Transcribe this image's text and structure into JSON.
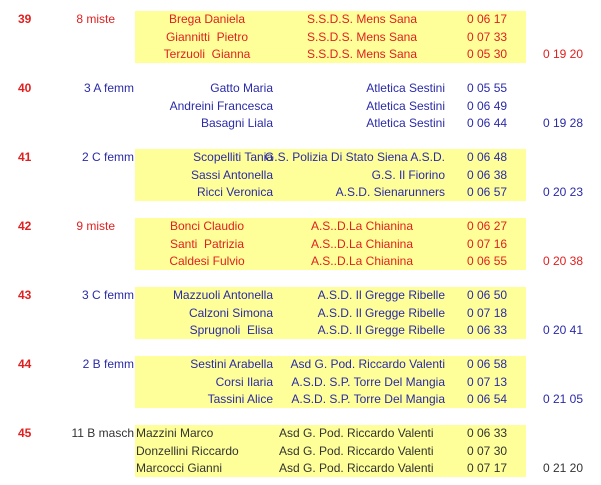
{
  "colors": {
    "highlight": "#ffff99",
    "red": "#e02020",
    "blue": "#2a2aa8",
    "black": "#333333"
  },
  "teams": [
    {
      "rank": "39",
      "category": "8 miste",
      "style": "red",
      "highlight": true,
      "total": "0 19 20",
      "members": [
        {
          "name": "Brega Daniela",
          "club": "S.S.D.S. Mens Sana",
          "time": "0 06 17"
        },
        {
          "name": "Giannitti  Pietro",
          "club": "S.S.D.S. Mens Sana",
          "time": "0 07 33"
        },
        {
          "name": "Terzuoli  Gianna",
          "club": "S.S.D.S. Mens Sana",
          "time": "0 05 30"
        }
      ]
    },
    {
      "rank": "40",
      "category": "3 A femm",
      "style": "blue",
      "highlight": false,
      "total": "0 19 28",
      "members": [
        {
          "name": "Gatto Maria",
          "club": "Atletica Sestini",
          "time": "0 05 55"
        },
        {
          "name": "Andreini Francesca",
          "club": "Atletica Sestini",
          "time": "0 06 49"
        },
        {
          "name": "Basagni Liala",
          "club": "Atletica Sestini",
          "time": "0 06 44"
        }
      ]
    },
    {
      "rank": "41",
      "category": "2 C femm",
      "style": "blue",
      "highlight": true,
      "total": "0 20 23",
      "members": [
        {
          "name": "Scopelliti Tania",
          "club": "G.S. Polizia Di Stato Siena A.S.D.",
          "time": "0 06 48"
        },
        {
          "name": "Sassi Antonella",
          "club": "G.S. Il Fiorino",
          "time": "0 06 38"
        },
        {
          "name": "Ricci Veronica",
          "club": "A.S.D. Sienarunners",
          "time": "0 06 57"
        }
      ]
    },
    {
      "rank": "42",
      "category": "9 miste",
      "style": "red",
      "highlight": true,
      "total": "0 20 38",
      "members": [
        {
          "name": "Bonci Claudio",
          "club": "A.S..D.La Chianina",
          "time": "0 06 27"
        },
        {
          "name": "Santi  Patrizia",
          "club": "A.S..D.La Chianina",
          "time": "0 07 16"
        },
        {
          "name": "Caldesi Fulvio",
          "club": "A.S..D.La Chianina",
          "time": "0 06 55"
        }
      ]
    },
    {
      "rank": "43",
      "category": "3 C femm",
      "style": "blue",
      "highlight": true,
      "total": "0 20 41",
      "members": [
        {
          "name": "Mazzuoli Antonella",
          "club": "A.S.D. Il Gregge Ribelle",
          "time": "0 06 50"
        },
        {
          "name": "Calzoni Simona",
          "club": "A.S.D. Il Gregge Ribelle",
          "time": "0 07 18"
        },
        {
          "name": "Sprugnoli  Elisa",
          "club": "A.S.D. Il Gregge Ribelle",
          "time": "0 06 33"
        }
      ]
    },
    {
      "rank": "44",
      "category": "2 B femm",
      "style": "blue",
      "highlight": true,
      "total": "0 21 05",
      "members": [
        {
          "name": "Sestini Arabella",
          "club": "Asd G. Pod. Riccardo Valenti",
          "time": "0 06 58"
        },
        {
          "name": "Corsi Ilaria",
          "club": "A.S.D. S.P. Torre Del Mangia",
          "time": "0 07 13"
        },
        {
          "name": "Tassini Alice",
          "club": "A.S.D. S.P. Torre Del Mangia",
          "time": "0 06 54"
        }
      ]
    },
    {
      "rank": "45",
      "category": "11 B masch",
      "style": "black",
      "highlight": true,
      "total": "0 21 20",
      "members": [
        {
          "name": "Mazzini Marco",
          "club": "Asd G. Pod. Riccardo Valenti",
          "time": "0 06 33"
        },
        {
          "name": "Donzellini Riccardo",
          "club": "Asd G. Pod. Riccardo Valenti",
          "time": "0 07 30"
        },
        {
          "name": "Marcocci Gianni",
          "club": "Asd G. Pod. Riccardo Valenti",
          "time": "0 07 17"
        }
      ]
    }
  ]
}
